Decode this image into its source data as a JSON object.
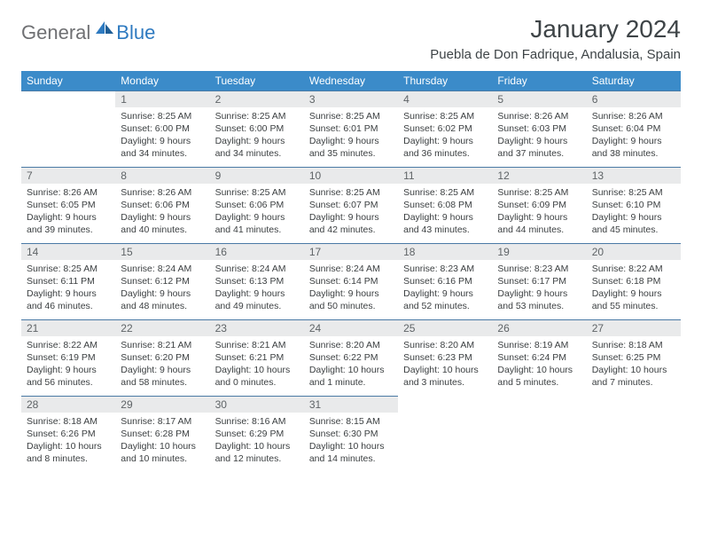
{
  "logo": {
    "textA": "General",
    "textB": "Blue"
  },
  "title": "January 2024",
  "location": "Puebla de Don Fadrique, Andalusia, Spain",
  "colors": {
    "header_bg": "#3b8bc9",
    "header_text": "#ffffff",
    "daynum_bg": "#e9eaeb",
    "daynum_text": "#5f6467",
    "rule": "#4a7aa5",
    "body_text": "#3b3f41",
    "title_text": "#3e4447",
    "logo_gray": "#6f7073",
    "logo_blue": "#2e7ac0"
  },
  "weekdays": [
    "Sunday",
    "Monday",
    "Tuesday",
    "Wednesday",
    "Thursday",
    "Friday",
    "Saturday"
  ],
  "first_weekday_index": 1,
  "days": [
    {
      "n": 1,
      "sunrise": "8:25 AM",
      "sunset": "6:00 PM",
      "daylight": "9 hours and 34 minutes."
    },
    {
      "n": 2,
      "sunrise": "8:25 AM",
      "sunset": "6:00 PM",
      "daylight": "9 hours and 34 minutes."
    },
    {
      "n": 3,
      "sunrise": "8:25 AM",
      "sunset": "6:01 PM",
      "daylight": "9 hours and 35 minutes."
    },
    {
      "n": 4,
      "sunrise": "8:25 AM",
      "sunset": "6:02 PM",
      "daylight": "9 hours and 36 minutes."
    },
    {
      "n": 5,
      "sunrise": "8:26 AM",
      "sunset": "6:03 PM",
      "daylight": "9 hours and 37 minutes."
    },
    {
      "n": 6,
      "sunrise": "8:26 AM",
      "sunset": "6:04 PM",
      "daylight": "9 hours and 38 minutes."
    },
    {
      "n": 7,
      "sunrise": "8:26 AM",
      "sunset": "6:05 PM",
      "daylight": "9 hours and 39 minutes."
    },
    {
      "n": 8,
      "sunrise": "8:26 AM",
      "sunset": "6:06 PM",
      "daylight": "9 hours and 40 minutes."
    },
    {
      "n": 9,
      "sunrise": "8:25 AM",
      "sunset": "6:06 PM",
      "daylight": "9 hours and 41 minutes."
    },
    {
      "n": 10,
      "sunrise": "8:25 AM",
      "sunset": "6:07 PM",
      "daylight": "9 hours and 42 minutes."
    },
    {
      "n": 11,
      "sunrise": "8:25 AM",
      "sunset": "6:08 PM",
      "daylight": "9 hours and 43 minutes."
    },
    {
      "n": 12,
      "sunrise": "8:25 AM",
      "sunset": "6:09 PM",
      "daylight": "9 hours and 44 minutes."
    },
    {
      "n": 13,
      "sunrise": "8:25 AM",
      "sunset": "6:10 PM",
      "daylight": "9 hours and 45 minutes."
    },
    {
      "n": 14,
      "sunrise": "8:25 AM",
      "sunset": "6:11 PM",
      "daylight": "9 hours and 46 minutes."
    },
    {
      "n": 15,
      "sunrise": "8:24 AM",
      "sunset": "6:12 PM",
      "daylight": "9 hours and 48 minutes."
    },
    {
      "n": 16,
      "sunrise": "8:24 AM",
      "sunset": "6:13 PM",
      "daylight": "9 hours and 49 minutes."
    },
    {
      "n": 17,
      "sunrise": "8:24 AM",
      "sunset": "6:14 PM",
      "daylight": "9 hours and 50 minutes."
    },
    {
      "n": 18,
      "sunrise": "8:23 AM",
      "sunset": "6:16 PM",
      "daylight": "9 hours and 52 minutes."
    },
    {
      "n": 19,
      "sunrise": "8:23 AM",
      "sunset": "6:17 PM",
      "daylight": "9 hours and 53 minutes."
    },
    {
      "n": 20,
      "sunrise": "8:22 AM",
      "sunset": "6:18 PM",
      "daylight": "9 hours and 55 minutes."
    },
    {
      "n": 21,
      "sunrise": "8:22 AM",
      "sunset": "6:19 PM",
      "daylight": "9 hours and 56 minutes."
    },
    {
      "n": 22,
      "sunrise": "8:21 AM",
      "sunset": "6:20 PM",
      "daylight": "9 hours and 58 minutes."
    },
    {
      "n": 23,
      "sunrise": "8:21 AM",
      "sunset": "6:21 PM",
      "daylight": "10 hours and 0 minutes."
    },
    {
      "n": 24,
      "sunrise": "8:20 AM",
      "sunset": "6:22 PM",
      "daylight": "10 hours and 1 minute."
    },
    {
      "n": 25,
      "sunrise": "8:20 AM",
      "sunset": "6:23 PM",
      "daylight": "10 hours and 3 minutes."
    },
    {
      "n": 26,
      "sunrise": "8:19 AM",
      "sunset": "6:24 PM",
      "daylight": "10 hours and 5 minutes."
    },
    {
      "n": 27,
      "sunrise": "8:18 AM",
      "sunset": "6:25 PM",
      "daylight": "10 hours and 7 minutes."
    },
    {
      "n": 28,
      "sunrise": "8:18 AM",
      "sunset": "6:26 PM",
      "daylight": "10 hours and 8 minutes."
    },
    {
      "n": 29,
      "sunrise": "8:17 AM",
      "sunset": "6:28 PM",
      "daylight": "10 hours and 10 minutes."
    },
    {
      "n": 30,
      "sunrise": "8:16 AM",
      "sunset": "6:29 PM",
      "daylight": "10 hours and 12 minutes."
    },
    {
      "n": 31,
      "sunrise": "8:15 AM",
      "sunset": "6:30 PM",
      "daylight": "10 hours and 14 minutes."
    }
  ],
  "labels": {
    "sunrise": "Sunrise:",
    "sunset": "Sunset:",
    "daylight": "Daylight:"
  }
}
